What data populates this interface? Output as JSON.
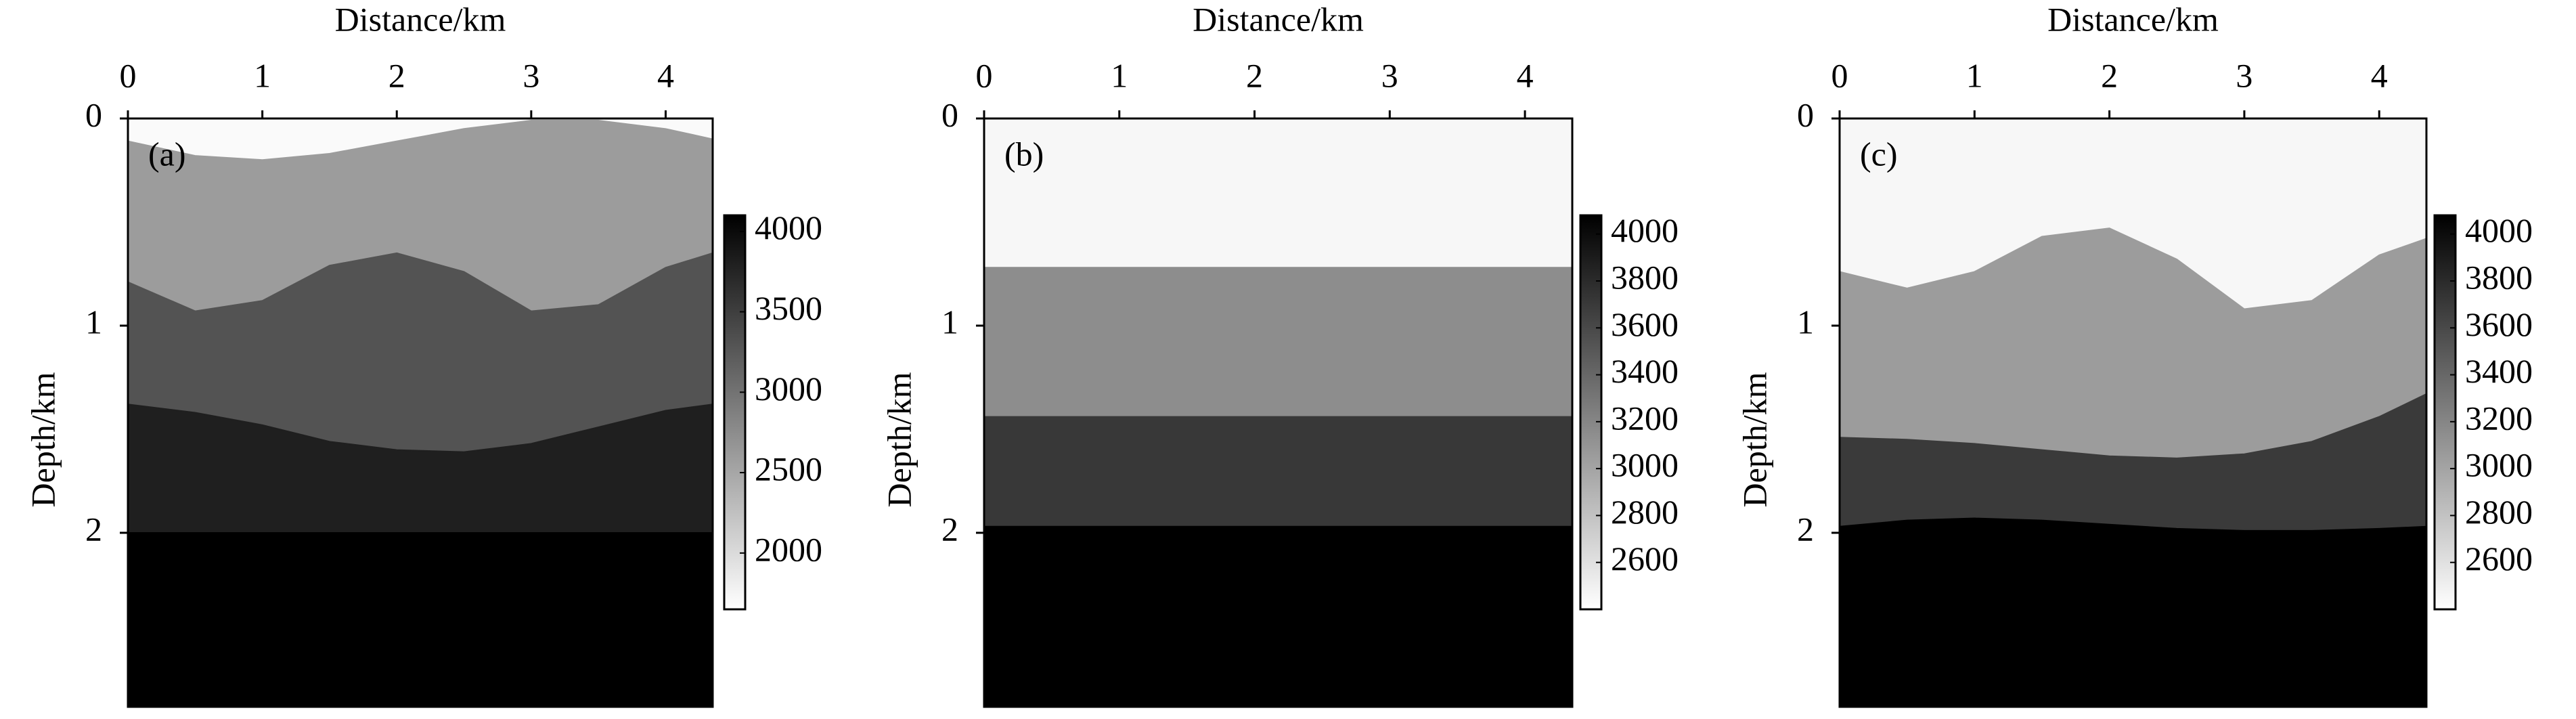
{
  "chart_data": [
    {
      "type": "velocity-model",
      "label": "(a)",
      "xlabel": "Distance/km",
      "ylabel": "Depth/km",
      "xlim": [
        0,
        4.35
      ],
      "xticks": [
        0,
        1,
        2,
        3,
        4
      ],
      "ylim": [
        2.84,
        0
      ],
      "yticks": [
        0,
        1,
        2
      ],
      "x": [
        0,
        0.5,
        1,
        1.5,
        2,
        2.5,
        3,
        3.5,
        4,
        4.35
      ],
      "layers": [
        {
          "velocity": 1700
        },
        {
          "velocity": 2600,
          "top": [
            0.11,
            0.18,
            0.2,
            0.17,
            0.11,
            0.05,
            0.01,
            0.01,
            0.05,
            0.1
          ]
        },
        {
          "velocity": 3300,
          "top": [
            0.79,
            0.93,
            0.88,
            0.71,
            0.65,
            0.74,
            0.93,
            0.9,
            0.72,
            0.65
          ]
        },
        {
          "velocity": 3800,
          "top": [
            1.38,
            1.42,
            1.48,
            1.56,
            1.6,
            1.61,
            1.57,
            1.49,
            1.41,
            1.38
          ]
        },
        {
          "velocity": 4100,
          "top": [
            2,
            2,
            2,
            2,
            2,
            2,
            2,
            2,
            2,
            2
          ]
        }
      ],
      "colorbar": {
        "lim": [
          1650,
          4100
        ],
        "ticks": [
          2000,
          2500,
          3000,
          3500,
          4000
        ]
      }
    },
    {
      "type": "velocity-model",
      "label": "(b)",
      "xlabel": "Distance/km",
      "ylabel": "Depth/km",
      "xlim": [
        0,
        4.35
      ],
      "xticks": [
        0,
        1,
        2,
        3,
        4
      ],
      "ylim": [
        2.84,
        0
      ],
      "yticks": [
        0,
        1,
        2
      ],
      "x": [
        0,
        0.5,
        1,
        1.5,
        2,
        2.5,
        3,
        3.5,
        4,
        4.35
      ],
      "layers": [
        {
          "velocity": 2450
        },
        {
          "velocity": 3150,
          "top": [
            0.72,
            0.72,
            0.72,
            0.72,
            0.72,
            0.72,
            0.72,
            0.72,
            0.72,
            0.72
          ]
        },
        {
          "velocity": 3710,
          "top": [
            1.44,
            1.44,
            1.44,
            1.44,
            1.44,
            1.44,
            1.44,
            1.44,
            1.44,
            1.44
          ]
        },
        {
          "velocity": 4080,
          "top": [
            1.97,
            1.97,
            1.97,
            1.97,
            1.97,
            1.97,
            1.97,
            1.97,
            1.97,
            1.97
          ]
        }
      ],
      "colorbar": {
        "lim": [
          2400,
          4080
        ],
        "ticks": [
          2600,
          2800,
          3000,
          3200,
          3400,
          3600,
          3800,
          4000
        ]
      }
    },
    {
      "type": "velocity-model",
      "label": "(c)",
      "xlabel": "Distance/km",
      "ylabel": "Depth/km",
      "xlim": [
        0,
        4.35
      ],
      "xticks": [
        0,
        1,
        2,
        3,
        4
      ],
      "ylim": [
        2.84,
        0
      ],
      "yticks": [
        0,
        1,
        2
      ],
      "x": [
        0,
        0.5,
        1,
        1.5,
        2,
        2.5,
        3,
        3.5,
        4,
        4.35
      ],
      "layers": [
        {
          "velocity": 2450
        },
        {
          "velocity": 3050,
          "top": [
            0.74,
            0.82,
            0.74,
            0.57,
            0.53,
            0.68,
            0.92,
            0.88,
            0.66,
            0.58
          ]
        },
        {
          "velocity": 3700,
          "top": [
            1.54,
            1.55,
            1.57,
            1.6,
            1.63,
            1.64,
            1.62,
            1.56,
            1.44,
            1.33
          ]
        },
        {
          "velocity": 4080,
          "top": [
            1.97,
            1.94,
            1.93,
            1.94,
            1.96,
            1.98,
            1.99,
            1.99,
            1.98,
            1.97
          ]
        }
      ],
      "colorbar": {
        "lim": [
          2400,
          4080
        ],
        "ticks": [
          2600,
          2800,
          3000,
          3200,
          3400,
          3600,
          3800,
          4000
        ]
      }
    }
  ]
}
